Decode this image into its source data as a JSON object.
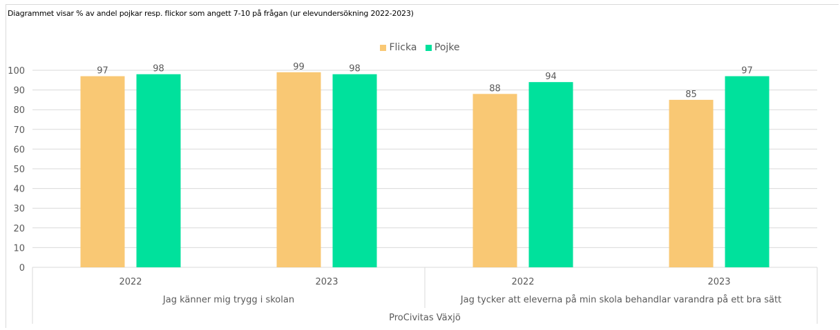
{
  "caption": "Diagrammet visar % av andel pojkar resp. flickor som angett 7-10 på frågan (ur elevundersökning 2022-2023)",
  "colors": {
    "flicka": "#f9c874",
    "pojke": "#00e19c",
    "grid": "#d9d9d9",
    "text": "#595959"
  },
  "chart_data": {
    "type": "bar",
    "legend_position": "top",
    "grid": true,
    "ylim": [
      0,
      100
    ],
    "yticks": [
      "0",
      "10",
      "20",
      "30",
      "40",
      "50",
      "60",
      "70",
      "80",
      "90",
      "100"
    ],
    "categories": [
      {
        "year": "2022",
        "question": "Jag känner mig trygg i skolan"
      },
      {
        "year": "2023",
        "question": "Jag känner mig trygg i skolan"
      },
      {
        "year": "2022",
        "question": "Jag tycker att eleverna på min skola behandlar varandra på ett bra sätt"
      },
      {
        "year": "2023",
        "question": "Jag tycker att eleverna på min skola behandlar varandra på ett bra sätt"
      }
    ],
    "question_labels": [
      "Jag känner mig trygg i skolan",
      "Jag tycker att eleverna på min skola behandlar varandra på ett bra sätt"
    ],
    "school_label": "ProCivitas Växjö",
    "series": [
      {
        "name": "Flicka",
        "color": "#f9c874",
        "values": [
          97,
          99,
          88,
          85
        ]
      },
      {
        "name": "Pojke",
        "color": "#00e19c",
        "values": [
          98,
          98,
          94,
          97
        ]
      }
    ]
  }
}
